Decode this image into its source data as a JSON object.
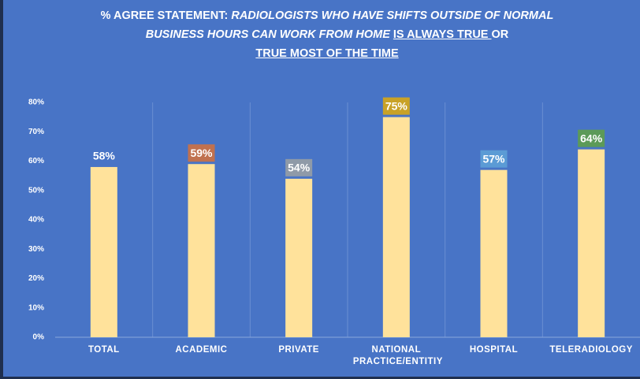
{
  "chart_data": {
    "type": "bar",
    "title": [
      {
        "text": "% AGREE STATEMENT: ",
        "style": "plain"
      },
      {
        "text": "RADIOLOGISTS WHO HAVE SHIFTS OUTSIDE OF NORMAL BUSINESS HOURS CAN WORK FROM HOME ",
        "style": "italic"
      },
      {
        "text": "IS ALWAYS TRUE ",
        "style": "underline"
      },
      {
        "text": "OR",
        "style": "plain"
      },
      {
        "text": "TRUE MOST OF THE TIME",
        "style": "underline block"
      }
    ],
    "categories": [
      "TOTAL",
      "ACADEMIC",
      "PRIVATE",
      "NATIONAL PRACTICE/ENTITIY",
      "HOSPITAL",
      "TELERADIOLOGY"
    ],
    "values": [
      58,
      59,
      54,
      75,
      57,
      64
    ],
    "value_labels": [
      "58%",
      "59%",
      "54%",
      "75%",
      "57%",
      "64%"
    ],
    "color": "#ffe29b",
    "label_colors": [
      null,
      "#c0714f",
      "#8f9aa8",
      "#c9a227",
      "#5b9bd5",
      "#5c9a58"
    ],
    "ylim": [
      0,
      80
    ],
    "yticks": [
      {
        "value": 0,
        "label": "0%"
      },
      {
        "value": 10,
        "label": "10%"
      },
      {
        "value": 20,
        "label": "20%"
      },
      {
        "value": 30,
        "label": "30%"
      },
      {
        "value": 40,
        "label": "40%"
      },
      {
        "value": 50,
        "label": "50%"
      },
      {
        "value": 60,
        "label": "60%"
      },
      {
        "value": 70,
        "label": "70%"
      },
      {
        "value": 80,
        "label": "80%"
      }
    ]
  }
}
